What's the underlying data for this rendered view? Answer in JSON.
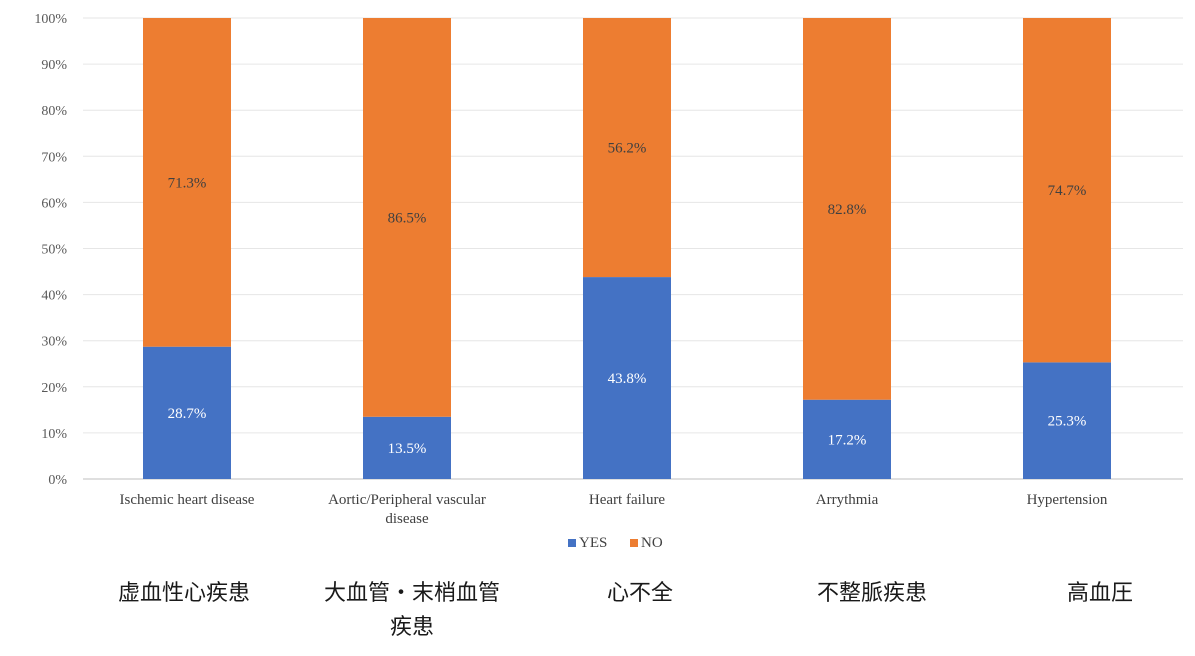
{
  "chart_data": {
    "type": "bar",
    "stacked": true,
    "categories": [
      "Ischemic heart disease",
      "Aortic/Peripheral vascular disease",
      "Heart failure",
      "Arrythmia",
      "Hypertension"
    ],
    "series": [
      {
        "name": "YES",
        "color": "#4472C4",
        "values": [
          28.7,
          13.5,
          43.8,
          17.2,
          25.3
        ],
        "labels": [
          "28.7%",
          "13.5%",
          "43.8%",
          "17.2%",
          "25.3%"
        ]
      },
      {
        "name": "NO",
        "color": "#ED7D31",
        "values": [
          71.3,
          86.5,
          56.2,
          82.8,
          74.7
        ],
        "labels": [
          "71.3%",
          "86.5%",
          "56.2%",
          "82.8%",
          "74.7%"
        ]
      }
    ],
    "y_ticks": [
      "0%",
      "10%",
      "20%",
      "30%",
      "40%",
      "50%",
      "60%",
      "70%",
      "80%",
      "90%",
      "100%"
    ],
    "ylim": [
      0,
      100
    ],
    "grid": true,
    "legend": "bottom"
  },
  "japanese_labels": [
    "虚血性心疾患",
    "大血管・末梢血管\n疾患",
    "心不全",
    "不整脈疾患",
    "高血圧"
  ]
}
